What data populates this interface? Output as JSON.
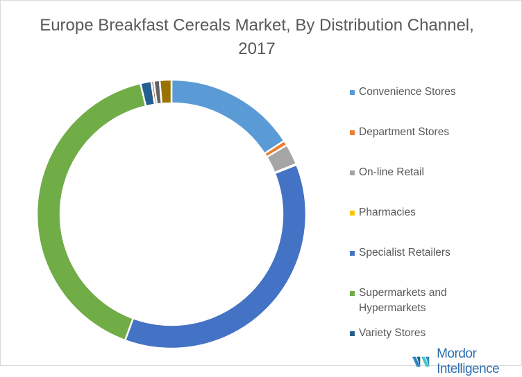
{
  "chart_data": {
    "type": "pie",
    "variant": "donut",
    "title": "Europe Breakfast Cereals Market, By Distribution Channel, 2017",
    "unit": "%",
    "slices": [
      {
        "name": "Convenience Stores",
        "value": 15.8,
        "color": "#5B9BD5"
      },
      {
        "name": "Department Stores",
        "value": 0.6,
        "color": "#ED7D31"
      },
      {
        "name": "On-line Retail",
        "value": 2.5,
        "color": "#A5A5A5"
      },
      {
        "name": "Pharmacies",
        "value": 0.1,
        "color": "#FFC000"
      },
      {
        "name": "Specialist Retailers",
        "value": 36.6,
        "color": "#4472C4"
      },
      {
        "name": "Supermarkets and Hypermarkets",
        "value": 40.7,
        "color": "#70AD47"
      },
      {
        "name": "Variety Stores",
        "value": 1.3,
        "color": "#255E91"
      },
      {
        "name": "",
        "value": 0.3,
        "color": "#9E480E"
      },
      {
        "name": "",
        "value": 0.7,
        "color": "#636363"
      },
      {
        "name": "",
        "value": 1.4,
        "color": "#997300"
      }
    ],
    "legend_position": "right",
    "legend_entries": [
      {
        "label": "Convenience Stores",
        "color": "#5B9BD5"
      },
      {
        "label": "Department Stores",
        "color": "#ED7D31"
      },
      {
        "label": "On-line Retail",
        "color": "#A5A5A5"
      },
      {
        "label": "Pharmacies",
        "color": "#FFC000"
      },
      {
        "label": "Specialist Retailers",
        "color": "#4472C4"
      },
      {
        "label": "Supermarkets and Hypermarkets",
        "color": "#70AD47"
      },
      {
        "label": "Variety Stores",
        "color": "#255E91"
      }
    ]
  },
  "logo": {
    "text": "Mordor Intelligence"
  }
}
